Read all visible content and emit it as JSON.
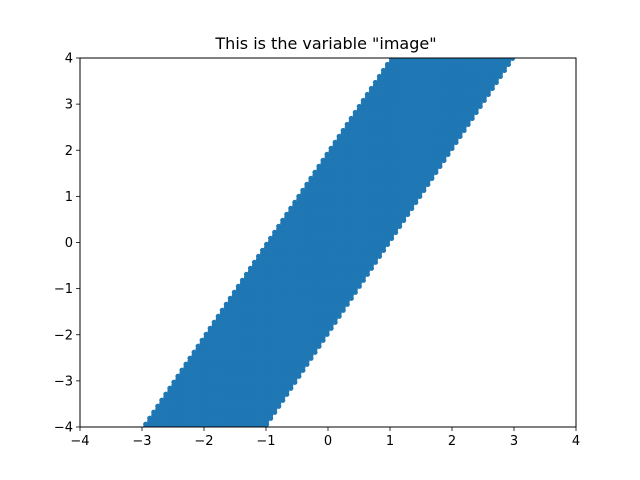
{
  "chart_data": {
    "type": "scatter",
    "title": "This is the variable \"image\"",
    "xlabel": "",
    "ylabel": "",
    "xlim": [
      -4,
      4
    ],
    "ylim": [
      -4,
      4
    ],
    "x_ticks": [
      "−4",
      "−3",
      "−2",
      "−1",
      "0",
      "1",
      "2",
      "3",
      "4"
    ],
    "y_ticks": [
      "−4",
      "−3",
      "−2",
      "−1",
      "0",
      "1",
      "2",
      "3",
      "4"
    ],
    "grid": false,
    "legend": false,
    "marker_color": "#1f77b4",
    "grid_spacing": 0.08,
    "region": {
      "description_bounds": "points where |x - y/2| <= 1 and not (x > y/2 - 0.05 and y > x + 1.95 - 0.3) and not (x < y/2 - 0.05 and y < x - 1.95 + 0.3)",
      "center_line_slope": 2,
      "half_width_x": 1.0,
      "gap_offset": 2.0
    }
  }
}
